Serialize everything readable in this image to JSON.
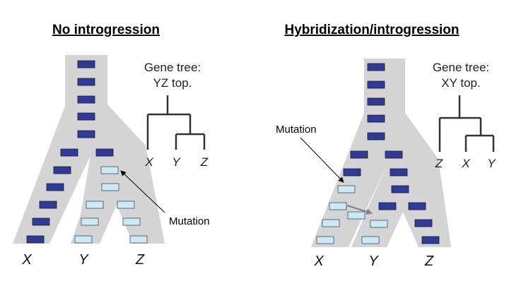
{
  "colors": {
    "species_tree": "#d4d4d4",
    "ancestral_state": "#2e3c96",
    "derived_state": "#cde9f3",
    "gene_tree_line": "#333333",
    "introgression_arrow": "#808080"
  },
  "left_panel": {
    "title": "No introgression",
    "gene_tree_label_1": "Gene tree:",
    "gene_tree_label_2": "YZ top.",
    "gene_tree_tips": [
      "X",
      "Y",
      "Z"
    ],
    "species_labels": [
      "X",
      "Y",
      "Z"
    ],
    "mutation_label": "Mutation"
  },
  "right_panel": {
    "title": "Hybridization/introgression",
    "gene_tree_label_1": "Gene tree:",
    "gene_tree_label_2": "XY top.",
    "gene_tree_tips": [
      "Z",
      "X",
      "Y"
    ],
    "species_labels": [
      "X",
      "Y",
      "Z"
    ],
    "mutation_label": "Mutation"
  }
}
